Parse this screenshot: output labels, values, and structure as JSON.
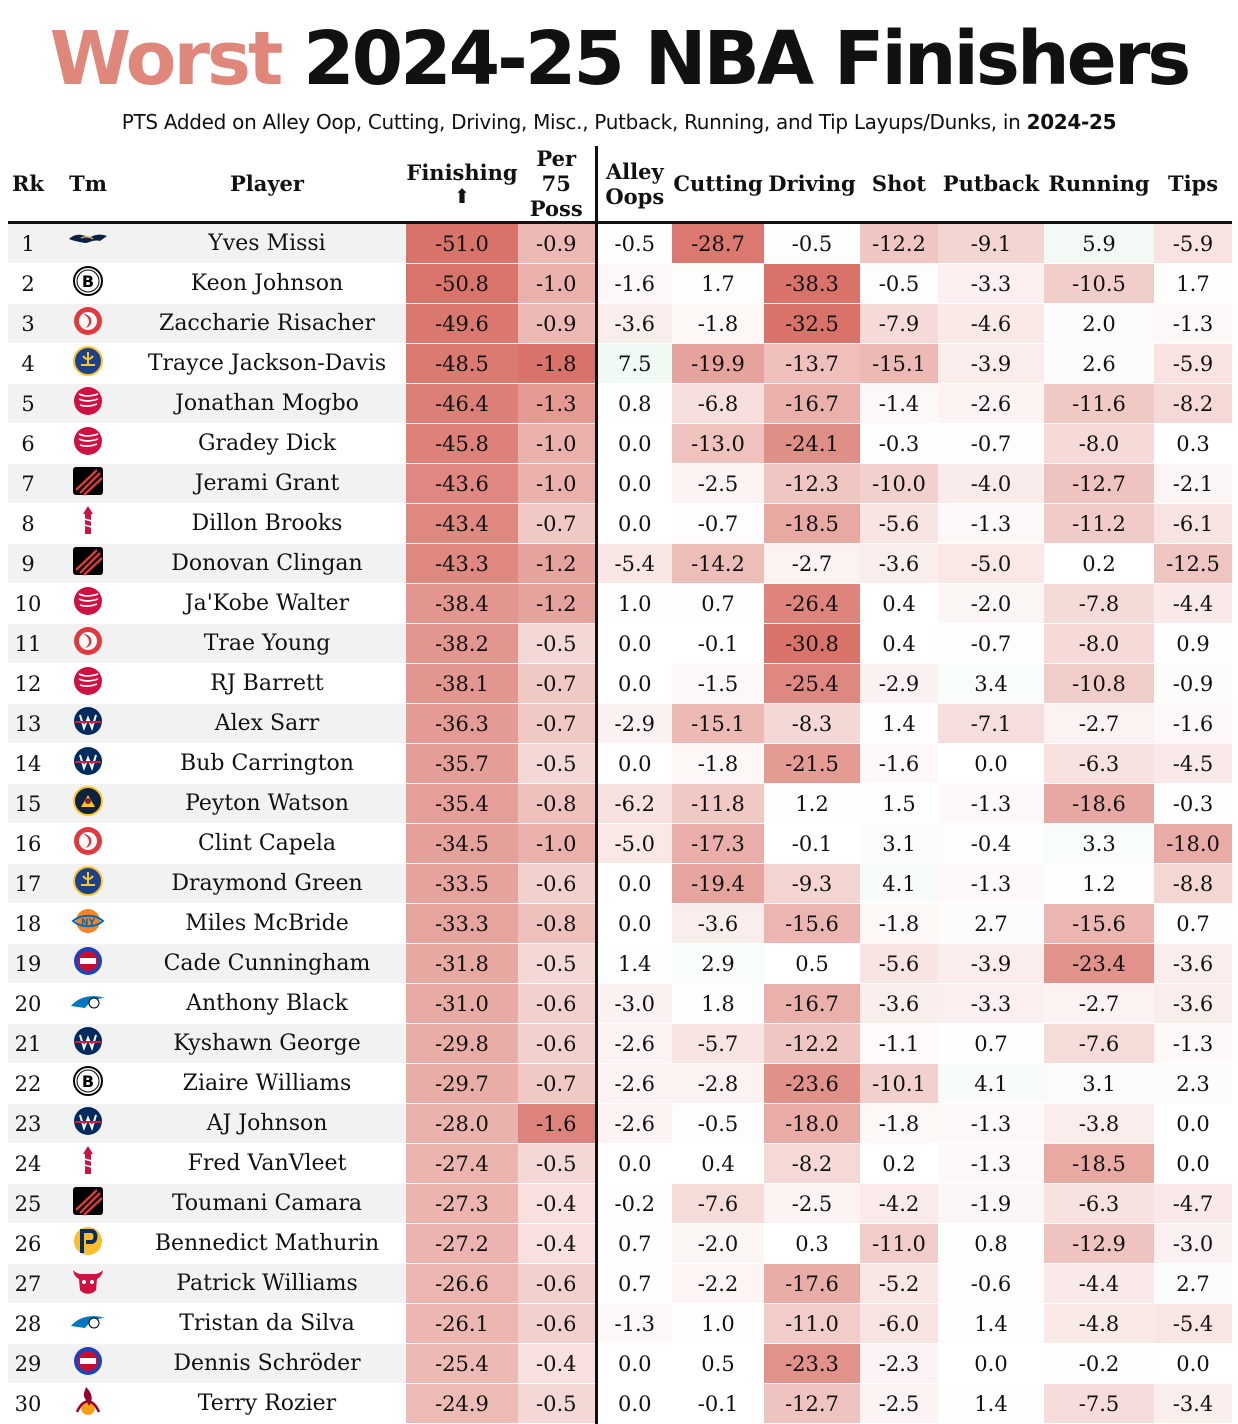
{
  "title": {
    "accent": "Worst",
    "rest": "2024-25 NBA Finishers"
  },
  "subtitle": {
    "text": "PTS Added on Alley Oop, Cutting, Driving, Misc., Putback, Running, and Tip Layups/Dunks, in",
    "season": "2024-25"
  },
  "colors": {
    "negative": "#d9736a",
    "positive": "#c3e6cf",
    "accent": "#e0877c"
  },
  "chart_data": {
    "type": "table",
    "columns": [
      {
        "key": "rk",
        "label": "Rk"
      },
      {
        "key": "tm",
        "label": "Tm"
      },
      {
        "key": "player",
        "label": "Player"
      },
      {
        "key": "fin",
        "label": "Finishing",
        "sort_indicator": "⬆",
        "range": [
          -51.0,
          0
        ]
      },
      {
        "key": "p75",
        "label": "Per 75 Poss",
        "range": [
          -1.8,
          0
        ]
      },
      {
        "key": "oop",
        "label": "Alley Oops",
        "range": [
          -30,
          30
        ]
      },
      {
        "key": "cut",
        "label": "Cutting",
        "range": [
          -30,
          30
        ]
      },
      {
        "key": "drv",
        "label": "Driving",
        "range": [
          -30,
          30
        ]
      },
      {
        "key": "shot",
        "label": "Shot",
        "range": [
          -30,
          30
        ]
      },
      {
        "key": "put",
        "label": "Putback",
        "range": [
          -30,
          30
        ]
      },
      {
        "key": "run",
        "label": "Running",
        "range": [
          -30,
          30
        ]
      },
      {
        "key": "tips",
        "label": "Tips",
        "range": [
          -30,
          30
        ]
      }
    ],
    "rows": [
      {
        "rk": "1",
        "tm": "pelicans-logo",
        "player": "Yves Missi",
        "fin": "-51.0",
        "p75": "-0.9",
        "oop": "-0.5",
        "cut": "-28.7",
        "drv": "-0.5",
        "shot": "-12.2",
        "put": "-9.1",
        "run": "5.9",
        "tips": "-5.9"
      },
      {
        "rk": "2",
        "tm": "nets-logo",
        "player": "Keon Johnson",
        "fin": "-50.8",
        "p75": "-1.0",
        "oop": "-1.6",
        "cut": "1.7",
        "drv": "-38.3",
        "shot": "-0.5",
        "put": "-3.3",
        "run": "-10.5",
        "tips": "1.7"
      },
      {
        "rk": "3",
        "tm": "hawks-logo",
        "player": "Zaccharie Risacher",
        "fin": "-49.6",
        "p75": "-0.9",
        "oop": "-3.6",
        "cut": "-1.8",
        "drv": "-32.5",
        "shot": "-7.9",
        "put": "-4.6",
        "run": "2.0",
        "tips": "-1.3"
      },
      {
        "rk": "4",
        "tm": "warriors-logo",
        "player": "Trayce Jackson-Davis",
        "fin": "-48.5",
        "p75": "-1.8",
        "oop": "7.5",
        "cut": "-19.9",
        "drv": "-13.7",
        "shot": "-15.1",
        "put": "-3.9",
        "run": "2.6",
        "tips": "-5.9"
      },
      {
        "rk": "5",
        "tm": "raptors-logo",
        "player": "Jonathan Mogbo",
        "fin": "-46.4",
        "p75": "-1.3",
        "oop": "0.8",
        "cut": "-6.8",
        "drv": "-16.7",
        "shot": "-1.4",
        "put": "-2.6",
        "run": "-11.6",
        "tips": "-8.2"
      },
      {
        "rk": "6",
        "tm": "raptors-logo",
        "player": "Gradey Dick",
        "fin": "-45.8",
        "p75": "-1.0",
        "oop": "0.0",
        "cut": "-13.0",
        "drv": "-24.1",
        "shot": "-0.3",
        "put": "-0.7",
        "run": "-8.0",
        "tips": "0.3"
      },
      {
        "rk": "7",
        "tm": "blazers-logo",
        "player": "Jerami Grant",
        "fin": "-43.6",
        "p75": "-1.0",
        "oop": "0.0",
        "cut": "-2.5",
        "drv": "-12.3",
        "shot": "-10.0",
        "put": "-4.0",
        "run": "-12.7",
        "tips": "-2.1"
      },
      {
        "rk": "8",
        "tm": "rockets-logo",
        "player": "Dillon Brooks",
        "fin": "-43.4",
        "p75": "-0.7",
        "oop": "0.0",
        "cut": "-0.7",
        "drv": "-18.5",
        "shot": "-5.6",
        "put": "-1.3",
        "run": "-11.2",
        "tips": "-6.1"
      },
      {
        "rk": "9",
        "tm": "blazers-logo",
        "player": "Donovan Clingan",
        "fin": "-43.3",
        "p75": "-1.2",
        "oop": "-5.4",
        "cut": "-14.2",
        "drv": "-2.7",
        "shot": "-3.6",
        "put": "-5.0",
        "run": "0.2",
        "tips": "-12.5"
      },
      {
        "rk": "10",
        "tm": "raptors-logo",
        "player": "Ja'Kobe Walter",
        "fin": "-38.4",
        "p75": "-1.2",
        "oop": "1.0",
        "cut": "0.7",
        "drv": "-26.4",
        "shot": "0.4",
        "put": "-2.0",
        "run": "-7.8",
        "tips": "-4.4"
      },
      {
        "rk": "11",
        "tm": "hawks-logo",
        "player": "Trae Young",
        "fin": "-38.2",
        "p75": "-0.5",
        "oop": "0.0",
        "cut": "-0.1",
        "drv": "-30.8",
        "shot": "0.4",
        "put": "-0.7",
        "run": "-8.0",
        "tips": "0.9"
      },
      {
        "rk": "12",
        "tm": "raptors-logo",
        "player": "RJ Barrett",
        "fin": "-38.1",
        "p75": "-0.7",
        "oop": "0.0",
        "cut": "-1.5",
        "drv": "-25.4",
        "shot": "-2.9",
        "put": "3.4",
        "run": "-10.8",
        "tips": "-0.9"
      },
      {
        "rk": "13",
        "tm": "wizards-logo",
        "player": "Alex Sarr",
        "fin": "-36.3",
        "p75": "-0.7",
        "oop": "-2.9",
        "cut": "-15.1",
        "drv": "-8.3",
        "shot": "1.4",
        "put": "-7.1",
        "run": "-2.7",
        "tips": "-1.6"
      },
      {
        "rk": "14",
        "tm": "wizards-logo",
        "player": "Bub Carrington",
        "fin": "-35.7",
        "p75": "-0.5",
        "oop": "0.0",
        "cut": "-1.8",
        "drv": "-21.5",
        "shot": "-1.6",
        "put": "0.0",
        "run": "-6.3",
        "tips": "-4.5"
      },
      {
        "rk": "15",
        "tm": "nuggets-logo",
        "player": "Peyton Watson",
        "fin": "-35.4",
        "p75": "-0.8",
        "oop": "-6.2",
        "cut": "-11.8",
        "drv": "1.2",
        "shot": "1.5",
        "put": "-1.3",
        "run": "-18.6",
        "tips": "-0.3"
      },
      {
        "rk": "16",
        "tm": "hawks-logo",
        "player": "Clint Capela",
        "fin": "-34.5",
        "p75": "-1.0",
        "oop": "-5.0",
        "cut": "-17.3",
        "drv": "-0.1",
        "shot": "3.1",
        "put": "-0.4",
        "run": "3.3",
        "tips": "-18.0"
      },
      {
        "rk": "17",
        "tm": "warriors-logo",
        "player": "Draymond Green",
        "fin": "-33.5",
        "p75": "-0.6",
        "oop": "0.0",
        "cut": "-19.4",
        "drv": "-9.3",
        "shot": "4.1",
        "put": "-1.3",
        "run": "1.2",
        "tips": "-8.8"
      },
      {
        "rk": "18",
        "tm": "knicks-logo",
        "player": "Miles McBride",
        "fin": "-33.3",
        "p75": "-0.8",
        "oop": "0.0",
        "cut": "-3.6",
        "drv": "-15.6",
        "shot": "-1.8",
        "put": "2.7",
        "run": "-15.6",
        "tips": "0.7"
      },
      {
        "rk": "19",
        "tm": "pistons-logo",
        "player": "Cade Cunningham",
        "fin": "-31.8",
        "p75": "-0.5",
        "oop": "1.4",
        "cut": "2.9",
        "drv": "0.5",
        "shot": "-5.6",
        "put": "-3.9",
        "run": "-23.4",
        "tips": "-3.6"
      },
      {
        "rk": "20",
        "tm": "magic-logo",
        "player": "Anthony Black",
        "fin": "-31.0",
        "p75": "-0.6",
        "oop": "-3.0",
        "cut": "1.8",
        "drv": "-16.7",
        "shot": "-3.6",
        "put": "-3.3",
        "run": "-2.7",
        "tips": "-3.6"
      },
      {
        "rk": "21",
        "tm": "wizards-logo",
        "player": "Kyshawn George",
        "fin": "-29.8",
        "p75": "-0.6",
        "oop": "-2.6",
        "cut": "-5.7",
        "drv": "-12.2",
        "shot": "-1.1",
        "put": "0.7",
        "run": "-7.6",
        "tips": "-1.3"
      },
      {
        "rk": "22",
        "tm": "nets-logo",
        "player": "Ziaire Williams",
        "fin": "-29.7",
        "p75": "-0.7",
        "oop": "-2.6",
        "cut": "-2.8",
        "drv": "-23.6",
        "shot": "-10.1",
        "put": "4.1",
        "run": "3.1",
        "tips": "2.3"
      },
      {
        "rk": "23",
        "tm": "wizards-logo",
        "player": "AJ Johnson",
        "fin": "-28.0",
        "p75": "-1.6",
        "oop": "-2.6",
        "cut": "-0.5",
        "drv": "-18.0",
        "shot": "-1.8",
        "put": "-1.3",
        "run": "-3.8",
        "tips": "0.0"
      },
      {
        "rk": "24",
        "tm": "rockets-logo",
        "player": "Fred VanVleet",
        "fin": "-27.4",
        "p75": "-0.5",
        "oop": "0.0",
        "cut": "0.4",
        "drv": "-8.2",
        "shot": "0.2",
        "put": "-1.3",
        "run": "-18.5",
        "tips": "0.0"
      },
      {
        "rk": "25",
        "tm": "blazers-logo",
        "player": "Toumani Camara",
        "fin": "-27.3",
        "p75": "-0.4",
        "oop": "-0.2",
        "cut": "-7.6",
        "drv": "-2.5",
        "shot": "-4.2",
        "put": "-1.9",
        "run": "-6.3",
        "tips": "-4.7"
      },
      {
        "rk": "26",
        "tm": "pacers-logo",
        "player": "Bennedict Mathurin",
        "fin": "-27.2",
        "p75": "-0.4",
        "oop": "0.7",
        "cut": "-2.0",
        "drv": "0.3",
        "shot": "-11.0",
        "put": "0.8",
        "run": "-12.9",
        "tips": "-3.0"
      },
      {
        "rk": "27",
        "tm": "bulls-logo",
        "player": "Patrick Williams",
        "fin": "-26.6",
        "p75": "-0.6",
        "oop": "0.7",
        "cut": "-2.2",
        "drv": "-17.6",
        "shot": "-5.2",
        "put": "-0.6",
        "run": "-4.4",
        "tips": "2.7"
      },
      {
        "rk": "28",
        "tm": "magic-logo",
        "player": "Tristan da Silva",
        "fin": "-26.1",
        "p75": "-0.6",
        "oop": "-1.3",
        "cut": "1.0",
        "drv": "-11.0",
        "shot": "-6.0",
        "put": "1.4",
        "run": "-4.8",
        "tips": "-5.4"
      },
      {
        "rk": "29",
        "tm": "pistons-logo",
        "player": "Dennis Schröder",
        "fin": "-25.4",
        "p75": "-0.4",
        "oop": "0.0",
        "cut": "0.5",
        "drv": "-23.3",
        "shot": "-2.3",
        "put": "0.0",
        "run": "-0.2",
        "tips": "0.0"
      },
      {
        "rk": "30",
        "tm": "heat-logo",
        "player": "Terry Rozier",
        "fin": "-24.9",
        "p75": "-0.5",
        "oop": "0.0",
        "cut": "-0.1",
        "drv": "-12.7",
        "shot": "-2.5",
        "put": "1.4",
        "run": "-7.5",
        "tips": "-3.4"
      }
    ]
  }
}
